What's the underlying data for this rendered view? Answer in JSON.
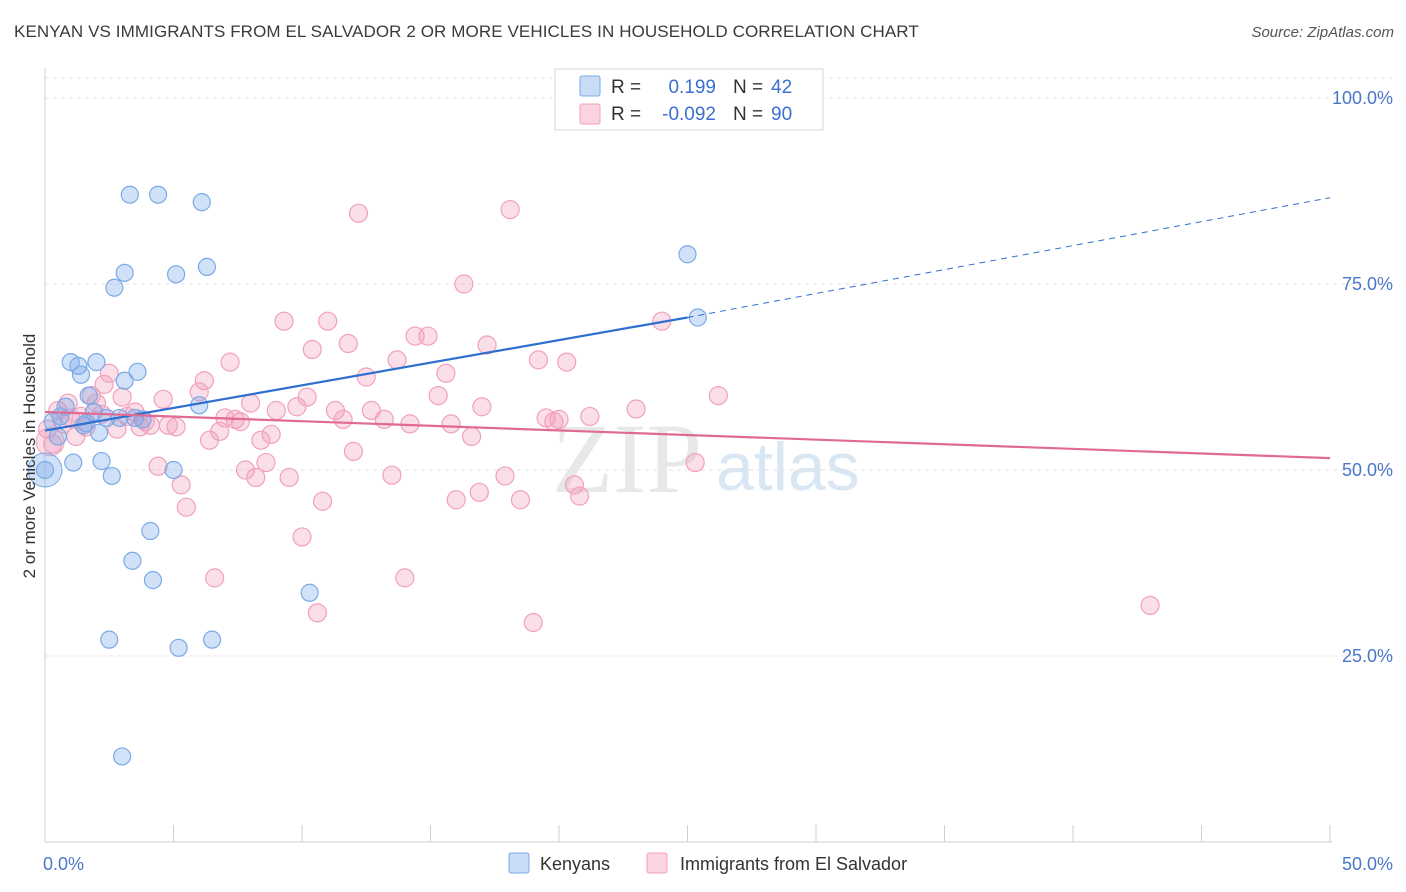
{
  "title": "KENYAN VS IMMIGRANTS FROM EL SALVADOR 2 OR MORE VEHICLES IN HOUSEHOLD CORRELATION CHART",
  "source": "Source: ZipAtlas.com",
  "watermark": {
    "zip": "ZIP",
    "atlas": "atlas"
  },
  "colors": {
    "blue": "#7aaae8",
    "pink": "#f2a0bc",
    "blue_line": "#2f6fd0",
    "pink_line": "#e06a94",
    "tick": "#4a78c8"
  },
  "stats": [
    {
      "r_label": "R =",
      "r": "0.199",
      "n_label": "N =",
      "n": "42",
      "color": "blue"
    },
    {
      "r_label": "R =",
      "r": "-0.092",
      "n_label": "N =",
      "n": "90",
      "color": "pink"
    }
  ],
  "legend": [
    {
      "label": "Kenyans",
      "color": "blue"
    },
    {
      "label": "Immigrants from El Salvador",
      "color": "pink"
    }
  ],
  "chart_data": {
    "type": "scatter",
    "title": "KENYAN VS IMMIGRANTS FROM EL SALVADOR 2 OR MORE VEHICLES IN HOUSEHOLD CORRELATION CHART",
    "xlabel": "",
    "ylabel": "2 or more Vehicles in Household",
    "xlim": [
      0,
      50
    ],
    "ylim": [
      0,
      105
    ],
    "x_tick_labels": [
      "0.0%",
      "50.0%"
    ],
    "y_ticks": [
      25,
      50,
      75,
      100
    ],
    "y_tick_labels": [
      "25.0%",
      "50.0%",
      "75.0%",
      "100.0%"
    ],
    "grid": true,
    "legend_position": "bottom-center",
    "series": [
      {
        "name": "Kenyans",
        "color": "blue",
        "trend": {
          "x": [
            0,
            25
          ],
          "y": [
            55.3,
            70.5
          ],
          "dashed_extension_to": [
            50,
            86.6
          ]
        },
        "points": [
          [
            0.0,
            50.0
          ],
          [
            0.3,
            56.5
          ],
          [
            0.5,
            54.5
          ],
          [
            0.8,
            58.5
          ],
          [
            1.0,
            64.5
          ],
          [
            1.1,
            51.0
          ],
          [
            1.3,
            64.0
          ],
          [
            1.4,
            62.8
          ],
          [
            1.6,
            56.3
          ],
          [
            1.7,
            60.0
          ],
          [
            1.9,
            57.8
          ],
          [
            2.0,
            64.5
          ],
          [
            2.1,
            55.0
          ],
          [
            2.2,
            51.2
          ],
          [
            2.4,
            57.0
          ],
          [
            2.6,
            49.2
          ],
          [
            2.7,
            74.5
          ],
          [
            2.9,
            57.0
          ],
          [
            3.1,
            76.5
          ],
          [
            3.3,
            87.0
          ],
          [
            3.6,
            63.2
          ],
          [
            3.5,
            57.0
          ],
          [
            4.1,
            41.8
          ],
          [
            3.4,
            37.8
          ],
          [
            4.2,
            35.2
          ],
          [
            4.4,
            87.0
          ],
          [
            5.0,
            50.0
          ],
          [
            5.1,
            76.3
          ],
          [
            6.0,
            58.7
          ],
          [
            6.1,
            86.0
          ],
          [
            6.3,
            77.3
          ],
          [
            6.5,
            27.2
          ],
          [
            5.2,
            26.1
          ],
          [
            3.0,
            11.5
          ],
          [
            10.3,
            33.5
          ],
          [
            3.1,
            62.0
          ],
          [
            2.5,
            27.2
          ],
          [
            25.0,
            79.0
          ],
          [
            25.4,
            70.5
          ],
          [
            0.6,
            57.2
          ],
          [
            3.8,
            56.8
          ],
          [
            1.5,
            56.0
          ]
        ]
      },
      {
        "name": "Immigrants from El Salvador",
        "color": "pink",
        "trend": {
          "x": [
            0,
            50
          ],
          "y": [
            57.8,
            51.6
          ]
        },
        "points": [
          [
            0.1,
            55.5
          ],
          [
            0.3,
            53.5
          ],
          [
            0.5,
            58.0
          ],
          [
            0.7,
            56.2
          ],
          [
            0.9,
            59.0
          ],
          [
            1.0,
            57.0
          ],
          [
            1.2,
            54.5
          ],
          [
            1.4,
            57.2
          ],
          [
            1.6,
            55.8
          ],
          [
            1.8,
            60.0
          ],
          [
            2.0,
            59.0
          ],
          [
            2.2,
            57.5
          ],
          [
            2.3,
            61.5
          ],
          [
            2.5,
            63.0
          ],
          [
            2.8,
            55.5
          ],
          [
            3.0,
            59.8
          ],
          [
            3.2,
            57.2
          ],
          [
            3.5,
            57.8
          ],
          [
            3.7,
            55.8
          ],
          [
            3.9,
            56.5
          ],
          [
            4.1,
            56.0
          ],
          [
            4.4,
            50.5
          ],
          [
            4.6,
            59.5
          ],
          [
            4.8,
            56.0
          ],
          [
            5.1,
            55.8
          ],
          [
            5.3,
            48.0
          ],
          [
            5.5,
            45.0
          ],
          [
            6.0,
            60.5
          ],
          [
            6.2,
            62.0
          ],
          [
            6.4,
            54.0
          ],
          [
            6.6,
            35.5
          ],
          [
            6.8,
            55.2
          ],
          [
            7.0,
            57.0
          ],
          [
            7.2,
            64.5
          ],
          [
            7.4,
            56.8
          ],
          [
            7.6,
            56.5
          ],
          [
            7.8,
            50.0
          ],
          [
            8.0,
            59.0
          ],
          [
            8.2,
            49.0
          ],
          [
            8.4,
            54.0
          ],
          [
            8.6,
            51.0
          ],
          [
            8.8,
            54.8
          ],
          [
            9.0,
            58.0
          ],
          [
            9.3,
            70.0
          ],
          [
            9.5,
            49.0
          ],
          [
            9.8,
            58.5
          ],
          [
            10.0,
            41.0
          ],
          [
            10.2,
            59.8
          ],
          [
            10.4,
            66.2
          ],
          [
            10.6,
            30.8
          ],
          [
            10.8,
            45.8
          ],
          [
            11.0,
            70.0
          ],
          [
            11.3,
            58.0
          ],
          [
            11.6,
            56.8
          ],
          [
            11.8,
            67.0
          ],
          [
            12.0,
            52.5
          ],
          [
            12.2,
            84.5
          ],
          [
            12.5,
            62.5
          ],
          [
            12.7,
            58.0
          ],
          [
            13.2,
            56.8
          ],
          [
            13.5,
            49.3
          ],
          [
            13.7,
            64.8
          ],
          [
            14.0,
            35.5
          ],
          [
            14.2,
            56.2
          ],
          [
            14.4,
            68.0
          ],
          [
            14.9,
            68.0
          ],
          [
            15.3,
            60.0
          ],
          [
            15.6,
            63.0
          ],
          [
            15.8,
            56.2
          ],
          [
            16.0,
            46.0
          ],
          [
            16.3,
            75.0
          ],
          [
            16.6,
            54.5
          ],
          [
            16.9,
            47.0
          ],
          [
            17.0,
            58.5
          ],
          [
            17.2,
            66.8
          ],
          [
            17.9,
            49.2
          ],
          [
            18.1,
            85.0
          ],
          [
            18.5,
            46.0
          ],
          [
            19.0,
            29.5
          ],
          [
            19.2,
            64.8
          ],
          [
            19.5,
            57.0
          ],
          [
            19.8,
            56.5
          ],
          [
            20.0,
            56.8
          ],
          [
            20.3,
            64.5
          ],
          [
            20.6,
            48.0
          ],
          [
            20.8,
            46.5
          ],
          [
            21.2,
            57.2
          ],
          [
            23.0,
            58.2
          ],
          [
            24.0,
            70.0
          ],
          [
            25.3,
            51.0
          ]
        ],
        "extra_points": [
          [
            26.2,
            60.0
          ],
          [
            43.0,
            31.8
          ]
        ]
      }
    ]
  }
}
